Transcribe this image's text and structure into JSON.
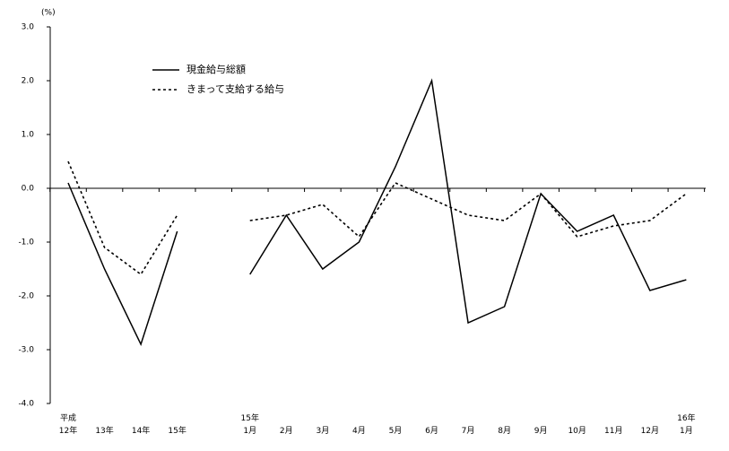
{
  "chart_data": {
    "type": "line",
    "y_unit": "(%)",
    "categories": [
      "平成\n12年",
      "13年",
      "14年",
      "15年",
      null,
      "15年\n1月",
      "2月",
      "3月",
      "4月",
      "5月",
      "6月",
      "7月",
      "8月",
      "9月",
      "10月",
      "11月",
      "12月",
      "16年\n1月"
    ],
    "series": [
      {
        "name": "現金給与総額",
        "color": "#000000",
        "dash": "solid",
        "values": [
          0.1,
          -1.5,
          -2.9,
          -0.8,
          null,
          -1.6,
          -0.5,
          -1.5,
          -1.0,
          0.4,
          2.0,
          -2.5,
          -2.2,
          -0.1,
          -0.8,
          -0.5,
          -1.9,
          -1.7
        ]
      },
      {
        "name": "きまって支給する給与",
        "color": "#000000",
        "dash": "dotted",
        "values": [
          0.5,
          -1.1,
          -1.6,
          -0.5,
          null,
          -0.6,
          -0.5,
          -0.3,
          -0.9,
          0.1,
          -0.2,
          -0.5,
          -0.6,
          -0.1,
          -0.9,
          -0.7,
          -0.6,
          -0.1
        ]
      }
    ],
    "ylim": [
      -4,
      3
    ],
    "yticks": [
      {
        "value": -4,
        "label": "-4.0"
      },
      {
        "value": -3,
        "label": "-3.0"
      },
      {
        "value": -2,
        "label": "-2.0"
      },
      {
        "value": -1,
        "label": "-1.0"
      },
      {
        "value": 0,
        "label": "0.0"
      },
      {
        "value": 1,
        "label": "1.0"
      },
      {
        "value": 2,
        "label": "2.0"
      },
      {
        "value": 3,
        "label": "3.0"
      }
    ]
  }
}
